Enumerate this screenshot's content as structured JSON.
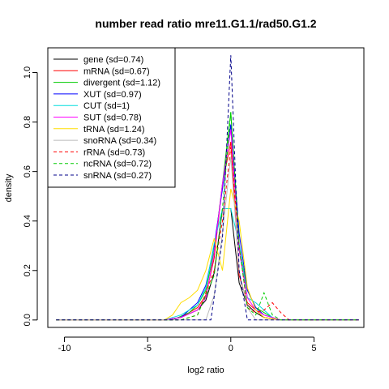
{
  "chart_data": {
    "type": "line",
    "title": "number read ratio mre11.G1.1/rad50.G1.2",
    "xlabel": "log2 ratio",
    "ylabel": "density",
    "xlim": [
      -11,
      8
    ],
    "ylim": [
      -0.03,
      1.1
    ],
    "xticks": [
      -10,
      -5,
      0,
      5
    ],
    "yticks": [
      0.0,
      0.2,
      0.4,
      0.6,
      0.8,
      1.0
    ],
    "grid": false,
    "legend_position": "top-left",
    "series": [
      {
        "name": "gene (sd=0.74)",
        "color": "#000000",
        "dash": false,
        "points": [
          [
            -10.5,
            0
          ],
          [
            -4,
            0
          ],
          [
            -3,
            0.01
          ],
          [
            -2,
            0.04
          ],
          [
            -1.5,
            0.08
          ],
          [
            -1,
            0.19
          ],
          [
            -0.5,
            0.45
          ],
          [
            0,
            0.45
          ],
          [
            0.5,
            0.15
          ],
          [
            1,
            0.06
          ],
          [
            1.5,
            0.03
          ],
          [
            2,
            0.01
          ],
          [
            3,
            0
          ],
          [
            7.7,
            0
          ]
        ]
      },
      {
        "name": "mRNA (sd=0.67)",
        "color": "#ff0000",
        "dash": false,
        "points": [
          [
            -10.5,
            0
          ],
          [
            -4,
            0
          ],
          [
            -3,
            0.01
          ],
          [
            -2,
            0.05
          ],
          [
            -1.5,
            0.1
          ],
          [
            -1,
            0.25
          ],
          [
            -0.5,
            0.55
          ],
          [
            0,
            0.72
          ],
          [
            0.5,
            0.18
          ],
          [
            1,
            0.07
          ],
          [
            1.5,
            0.04
          ],
          [
            2,
            0.01
          ],
          [
            3,
            0
          ],
          [
            7.7,
            0
          ]
        ]
      },
      {
        "name": "divergent (sd=1.12)",
        "color": "#00cc00",
        "dash": false,
        "points": [
          [
            -10.5,
            0
          ],
          [
            -3.5,
            0
          ],
          [
            -2.5,
            0.03
          ],
          [
            -2,
            0.06
          ],
          [
            -1.5,
            0.12
          ],
          [
            -1,
            0.28
          ],
          [
            -0.5,
            0.55
          ],
          [
            0,
            0.84
          ],
          [
            0.5,
            0.3
          ],
          [
            1,
            0.12
          ],
          [
            1.5,
            0.05
          ],
          [
            2,
            0.03
          ],
          [
            2.5,
            0.01
          ],
          [
            3,
            0
          ],
          [
            7.7,
            0
          ]
        ]
      },
      {
        "name": "XUT (sd=0.97)",
        "color": "#0000ff",
        "dash": false,
        "points": [
          [
            -10.5,
            0
          ],
          [
            -4,
            0
          ],
          [
            -3,
            0.01
          ],
          [
            -2,
            0.07
          ],
          [
            -1.5,
            0.14
          ],
          [
            -1,
            0.3
          ],
          [
            -0.5,
            0.53
          ],
          [
            0,
            0.79
          ],
          [
            0.5,
            0.35
          ],
          [
            1,
            0.12
          ],
          [
            1.5,
            0.05
          ],
          [
            2,
            0.02
          ],
          [
            3,
            0
          ],
          [
            7.7,
            0
          ]
        ]
      },
      {
        "name": "CUT (sd=1)",
        "color": "#00dddd",
        "dash": false,
        "points": [
          [
            -10.5,
            0
          ],
          [
            -4,
            0
          ],
          [
            -3,
            0.02
          ],
          [
            -2,
            0.06
          ],
          [
            -1.5,
            0.13
          ],
          [
            -1,
            0.31
          ],
          [
            -0.5,
            0.45
          ],
          [
            0,
            0.45
          ],
          [
            0.5,
            0.31
          ],
          [
            1,
            0.09
          ],
          [
            1.5,
            0.07
          ],
          [
            2,
            0.04
          ],
          [
            2.5,
            0.01
          ],
          [
            3,
            0
          ],
          [
            7.7,
            0
          ]
        ]
      },
      {
        "name": "SUT (sd=0.78)",
        "color": "#ff00ff",
        "dash": false,
        "points": [
          [
            -10.5,
            0
          ],
          [
            -4,
            0
          ],
          [
            -3,
            0.01
          ],
          [
            -2,
            0.04
          ],
          [
            -1.5,
            0.09
          ],
          [
            -1,
            0.27
          ],
          [
            -0.5,
            0.55
          ],
          [
            0,
            0.77
          ],
          [
            0.5,
            0.28
          ],
          [
            1,
            0.09
          ],
          [
            1.5,
            0.04
          ],
          [
            2,
            0.02
          ],
          [
            3,
            0
          ],
          [
            7.7,
            0
          ]
        ]
      },
      {
        "name": "tRNA (sd=1.24)",
        "color": "#ffdd00",
        "dash": false,
        "points": [
          [
            -10.5,
            0
          ],
          [
            -4,
            0
          ],
          [
            -3.5,
            0.02
          ],
          [
            -3,
            0.07
          ],
          [
            -2.5,
            0.09
          ],
          [
            -2,
            0.12
          ],
          [
            -1.5,
            0.2
          ],
          [
            -1,
            0.33
          ],
          [
            -0.5,
            0.2
          ],
          [
            0,
            0.53
          ],
          [
            0.5,
            0.4
          ],
          [
            1,
            0.13
          ],
          [
            1.5,
            0.04
          ],
          [
            2,
            0.01
          ],
          [
            3,
            0
          ],
          [
            7.7,
            0
          ]
        ]
      },
      {
        "name": "snoRNA (sd=0.34)",
        "color": "#bbbbbb",
        "dash": false,
        "points": [
          [
            -10.5,
            0
          ],
          [
            -1.5,
            0
          ],
          [
            -1,
            0.1
          ],
          [
            -0.5,
            0.35
          ],
          [
            0,
            0.66
          ],
          [
            0.5,
            0.2
          ],
          [
            1,
            0.05
          ],
          [
            1.5,
            0
          ],
          [
            7.7,
            0
          ]
        ]
      },
      {
        "name": "rRNA (sd=0.73)",
        "color": "#ff0000",
        "dash": true,
        "points": [
          [
            -10.5,
            0
          ],
          [
            -3,
            0
          ],
          [
            -2,
            0.02
          ],
          [
            -1,
            0.2
          ],
          [
            -0.5,
            0.4
          ],
          [
            0,
            0.7
          ],
          [
            0.5,
            0.3
          ],
          [
            1,
            0.05
          ],
          [
            1.5,
            0.03
          ],
          [
            2,
            0.04
          ],
          [
            2.5,
            0.07
          ],
          [
            3,
            0.03
          ],
          [
            3.5,
            0
          ],
          [
            7.7,
            0
          ]
        ]
      },
      {
        "name": "ncRNA (sd=0.72)",
        "color": "#00cc00",
        "dash": true,
        "points": [
          [
            -10.5,
            0
          ],
          [
            -3,
            0
          ],
          [
            -2,
            0.02
          ],
          [
            -1,
            0.18
          ],
          [
            -0.5,
            0.45
          ],
          [
            0,
            0.84
          ],
          [
            0.5,
            0.3
          ],
          [
            1,
            0.05
          ],
          [
            1.5,
            0.02
          ],
          [
            2,
            0.11
          ],
          [
            2.5,
            0.02
          ],
          [
            3,
            0
          ],
          [
            7.7,
            0
          ]
        ]
      },
      {
        "name": "snRNA (sd=0.27)",
        "color": "#000088",
        "dash": true,
        "points": [
          [
            -10.5,
            0
          ],
          [
            -1.2,
            0
          ],
          [
            -0.5,
            0.33
          ],
          [
            0,
            1.07
          ],
          [
            0.5,
            0.2
          ],
          [
            1,
            0
          ],
          [
            7.7,
            0
          ]
        ]
      }
    ]
  }
}
